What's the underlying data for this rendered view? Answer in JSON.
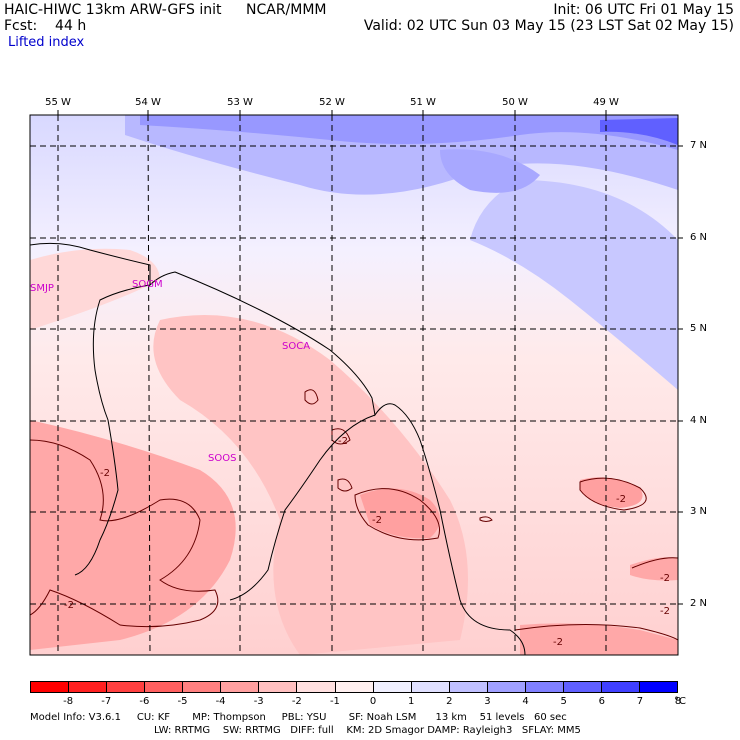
{
  "header": {
    "model": "HAIC-HIWC 13km ARW-GFS init",
    "org": "NCAR/MMM",
    "init": "Init: 06 UTC Fri 01 May 15",
    "fcst": "Fcst:    44 h",
    "valid": "Valid: 02 UTC Sun 03 May 15 (23 LST Sat 02 May 15)",
    "field": "Lifted index"
  },
  "map": {
    "lon_labels": [
      "55 W",
      "54 W",
      "53 W",
      "52 W",
      "51 W",
      "50 W",
      "49 W"
    ],
    "lat_labels": [
      "7 N",
      "6 N",
      "5 N",
      "4 N",
      "3 N",
      "2 N"
    ],
    "stations": [
      "SMJP",
      "SOGM",
      "SOCA",
      "SOOS"
    ],
    "contour_label": "-2"
  },
  "colorbar": {
    "ticks": [
      "-8",
      "-7",
      "-6",
      "-5",
      "-4",
      "-3",
      "-2",
      "-1",
      "0",
      "1",
      "2",
      "3",
      "4",
      "5",
      "6",
      "7",
      "8"
    ],
    "unit": "°C",
    "colors": [
      "#ff0000",
      "#ff2020",
      "#ff4040",
      "#ff6060",
      "#ff8080",
      "#ffa0a0",
      "#ffc0c0",
      "#ffe0e0",
      "#fff0f0",
      "#f0f0ff",
      "#e0e0ff",
      "#c0c0ff",
      "#a0a0ff",
      "#8080ff",
      "#6060ff",
      "#4040ff",
      "#0000ff"
    ]
  },
  "footer": {
    "line1": "Model Info: V3.6.1     CU: KF       MP: Thompson     PBL: YSU       SF: Noah LSM      13 km    51 levels   60 sec",
    "line2": "LW: RRTMG    SW: RRTMG   DIFF: full    KM: 2D Smagor DAMP: Rayleigh3   SFLAY: MM5"
  }
}
